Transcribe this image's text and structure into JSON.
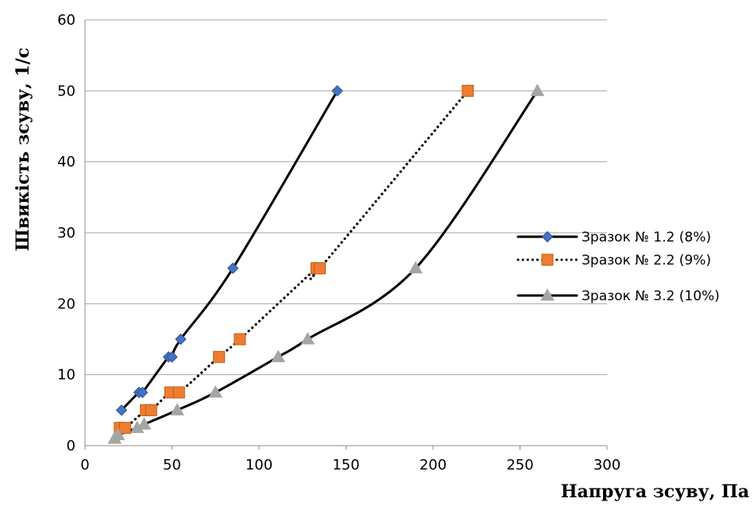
{
  "chart_data": {
    "type": "scatter",
    "title": "",
    "xlabel": "Напруга зсуву, Па",
    "ylabel": "Швикість зсуву, 1/с",
    "xlim": [
      0,
      300
    ],
    "ylim": [
      0,
      60
    ],
    "x_ticks": [
      "0",
      "50",
      "100",
      "150",
      "200",
      "250",
      "300"
    ],
    "y_ticks": [
      "0",
      "10",
      "20",
      "30",
      "40",
      "50",
      "60"
    ],
    "grid": "horizontal",
    "legend_position": "right",
    "series": [
      {
        "name": "Зразок № 1.2 (8%)",
        "color": "#4472C4",
        "line": "solid",
        "marker": "diamond",
        "points": [
          [
            21,
            5
          ],
          [
            31,
            7.5
          ],
          [
            33,
            7.5
          ],
          [
            48,
            12.5
          ],
          [
            50,
            12.5
          ],
          [
            55,
            15
          ],
          [
            85,
            25
          ],
          [
            145,
            50
          ]
        ]
      },
      {
        "name": "Зразок № 2.2 (9%)",
        "color": "#ED7D31",
        "line": "dotted",
        "marker": "square",
        "points": [
          [
            20,
            2.5
          ],
          [
            23,
            2.5
          ],
          [
            35,
            5
          ],
          [
            38,
            5
          ],
          [
            49,
            7.5
          ],
          [
            54,
            7.5
          ],
          [
            77,
            12.5
          ],
          [
            89,
            15
          ],
          [
            133,
            25
          ],
          [
            135,
            25
          ],
          [
            220,
            50
          ]
        ]
      },
      {
        "name": "Зразок № 3.2 (10%)",
        "color": "#A5A5A5",
        "line": "solid",
        "marker": "triangle",
        "points": [
          [
            17,
            1
          ],
          [
            19,
            1.5
          ],
          [
            30,
            2.5
          ],
          [
            34,
            3
          ],
          [
            53,
            5
          ],
          [
            75,
            7.5
          ],
          [
            111,
            12.5
          ],
          [
            128,
            15
          ],
          [
            190,
            25
          ],
          [
            260,
            50
          ]
        ]
      }
    ]
  }
}
